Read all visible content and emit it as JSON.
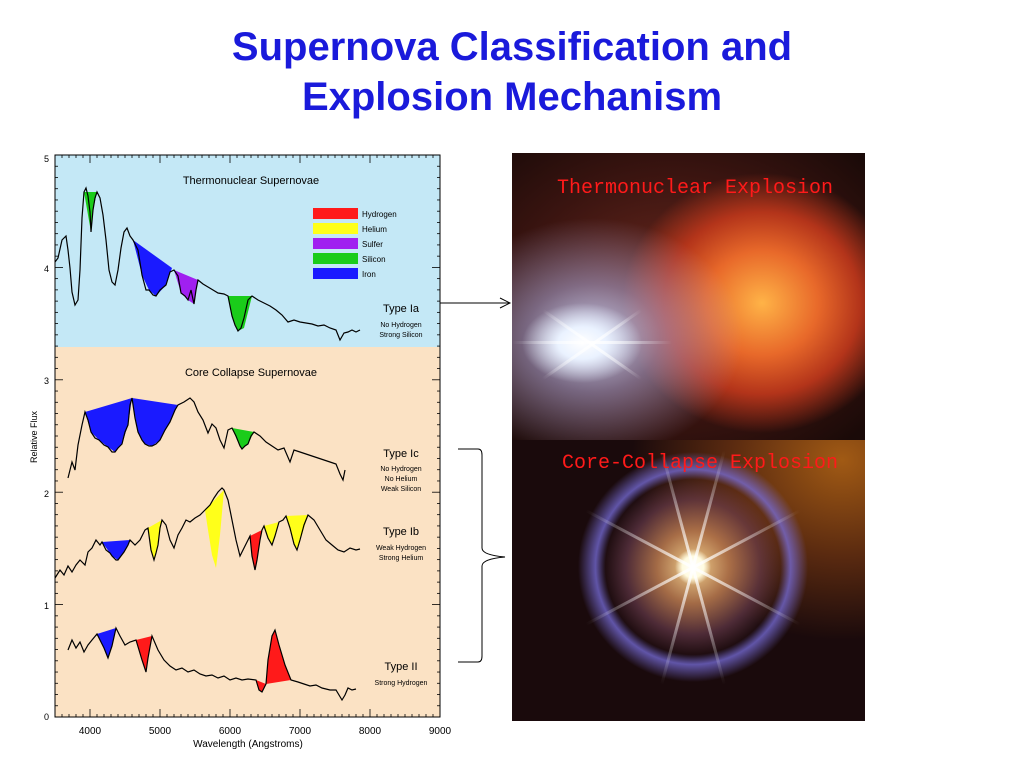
{
  "title": {
    "line1": "Supernova Classification and",
    "line2": "Explosion Mechanism"
  },
  "figure": {
    "ylabel": "Relative Flux",
    "xlabel": "Wavelength (Angstroms)",
    "yticks": [
      "0",
      "1",
      "2",
      "3",
      "4",
      "5"
    ],
    "xticks": [
      "4000",
      "5000",
      "6000",
      "7000",
      "8000",
      "9000"
    ],
    "top_panel_title": "Thermonuclear Supernovae",
    "bottom_panel_title": "Core Collapse Supernovae",
    "legend": [
      {
        "label": "Hydrogen",
        "color": "#ff1a1a"
      },
      {
        "label": "Helium",
        "color": "#ffff1a"
      },
      {
        "label": "Sulfer",
        "color": "#a020f0"
      },
      {
        "label": "Silicon",
        "color": "#1acc1a"
      },
      {
        "label": "Iron",
        "color": "#1a1aff"
      }
    ],
    "types": [
      {
        "name": "Type Ia",
        "lines": [
          "No Hydrogen",
          "Strong Silicon"
        ]
      },
      {
        "name": "Type Ic",
        "lines": [
          "No Hydrogen",
          "No Helium",
          "Weak Silicon"
        ]
      },
      {
        "name": "Type Ib",
        "lines": [
          "Weak Hydrogen",
          "Strong Helium"
        ]
      },
      {
        "name": "Type II",
        "lines": [
          "Strong Hydrogen"
        ]
      }
    ],
    "colors": {
      "top_panel": "#c4e8f6",
      "bottom_panel": "#fbe2c4"
    }
  },
  "photos": {
    "top_label": "Thermonuclear Explosion",
    "bottom_label": "Core-Collapse Explosion"
  }
}
